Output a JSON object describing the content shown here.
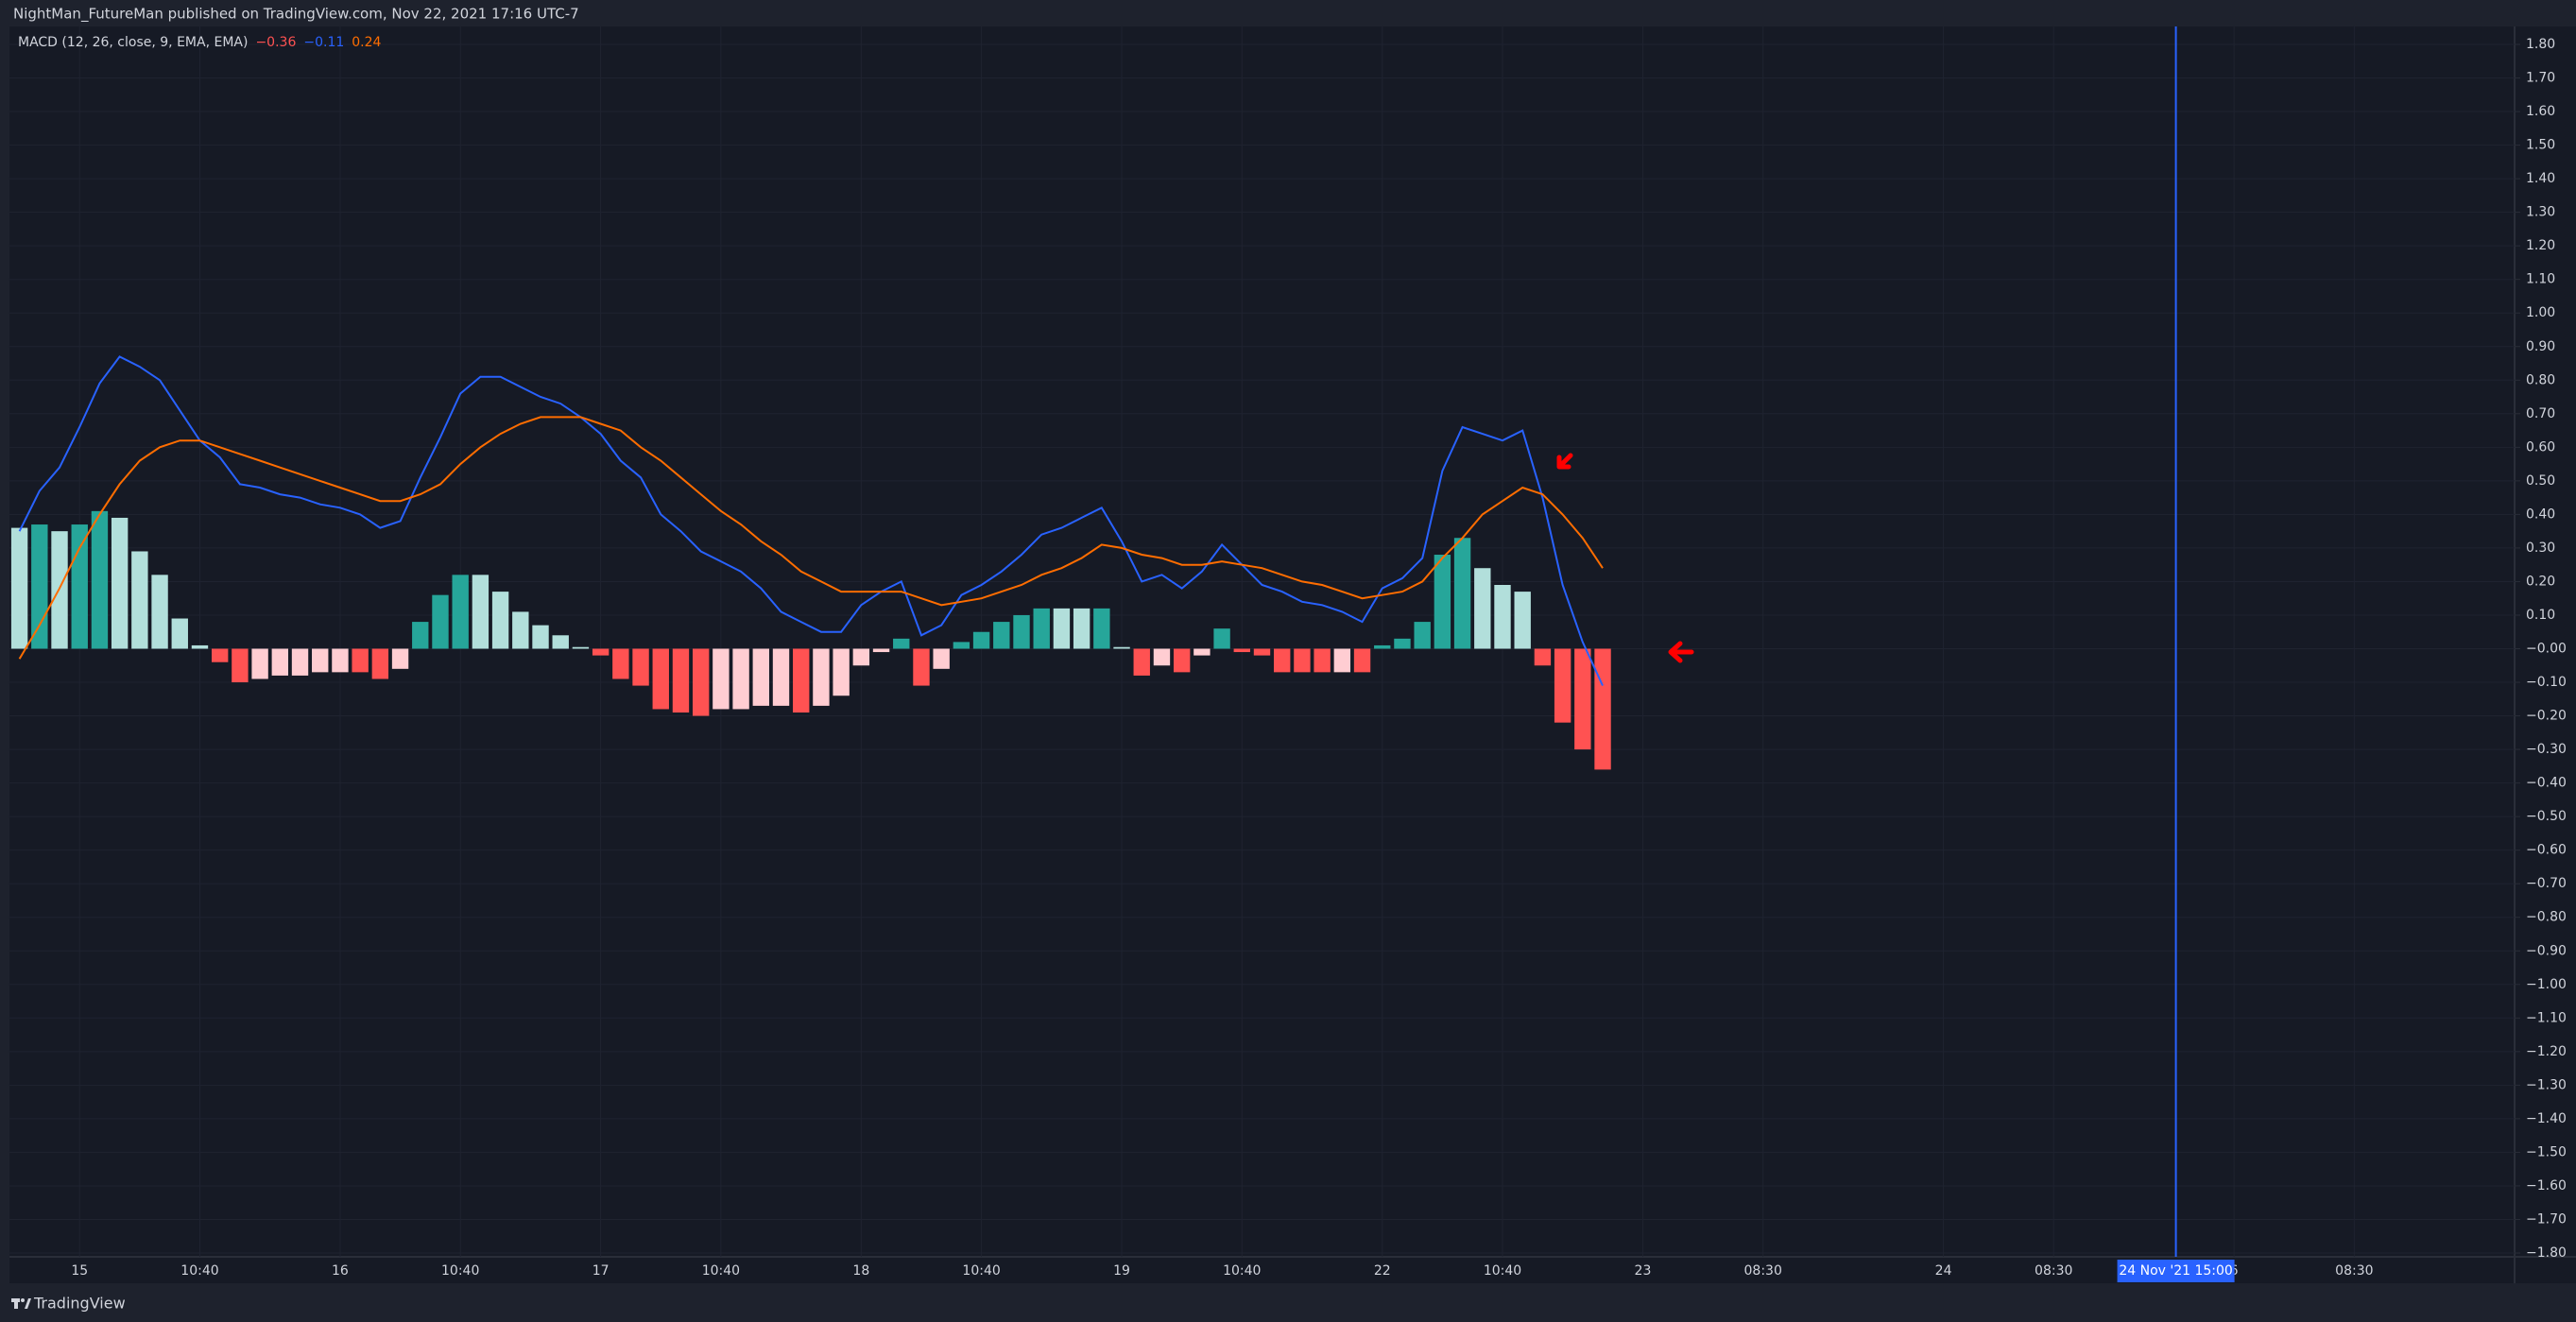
{
  "header": {
    "text": "NightMan_FutureMan published on TradingView.com, Nov 22, 2021 17:16 UTC-7"
  },
  "footer": {
    "brand": "TradingView"
  },
  "chart_data": {
    "type": "macd",
    "indicator": "MACD (12, 26, close, 9, EMA, EMA)",
    "readouts": [
      "−0.36",
      "−0.11",
      "0.24"
    ],
    "histogram": {
      "values": [
        0.36,
        0.37,
        0.35,
        0.37,
        0.41,
        0.39,
        0.29,
        0.22,
        0.09,
        0.01,
        -0.04,
        -0.1,
        -0.09,
        -0.08,
        -0.08,
        -0.07,
        -0.07,
        -0.07,
        -0.09,
        -0.06,
        0.08,
        0.16,
        0.22,
        0.22,
        0.17,
        0.11,
        0.07,
        0.04,
        0.005,
        -0.02,
        -0.09,
        -0.11,
        -0.18,
        -0.19,
        -0.2,
        -0.18,
        -0.18,
        -0.17,
        -0.17,
        -0.19,
        -0.17,
        -0.14,
        -0.05,
        -0.01,
        0.03,
        -0.11,
        -0.06,
        0.02,
        0.05,
        0.08,
        0.1,
        0.12,
        0.12,
        0.12,
        0.12,
        0.005,
        -0.08,
        -0.05,
        -0.07,
        -0.02,
        0.06,
        -0.01,
        -0.02,
        -0.07,
        -0.07,
        -0.07,
        -0.07,
        -0.07,
        0.01,
        0.03,
        0.08,
        0.28,
        0.33,
        0.24,
        0.19,
        0.17,
        -0.05,
        -0.22,
        -0.3,
        -0.36
      ],
      "colors": [
        "#b2dfdb",
        "#26a69a",
        "#b2dfdb",
        "#26a69a",
        "#26a69a",
        "#b2dfdb",
        "#b2dfdb",
        "#b2dfdb",
        "#b2dfdb",
        "#b2dfdb",
        "#ff5252",
        "#ff5252",
        "#ffcdd2",
        "#ffcdd2",
        "#ffcdd2",
        "#ffcdd2",
        "#ffcdd2",
        "#ff5252",
        "#ff5252",
        "#ffcdd2",
        "#26a69a",
        "#26a69a",
        "#26a69a",
        "#b2dfdb",
        "#b2dfdb",
        "#b2dfdb",
        "#b2dfdb",
        "#b2dfdb",
        "#b2dfdb",
        "#ff5252",
        "#ff5252",
        "#ff5252",
        "#ff5252",
        "#ff5252",
        "#ff5252",
        "#ffcdd2",
        "#ffcdd2",
        "#ffcdd2",
        "#ffcdd2",
        "#ff5252",
        "#ffcdd2",
        "#ffcdd2",
        "#ffcdd2",
        "#ffcdd2",
        "#26a69a",
        "#ff5252",
        "#ffcdd2",
        "#26a69a",
        "#26a69a",
        "#26a69a",
        "#26a69a",
        "#26a69a",
        "#b2dfdb",
        "#b2dfdb",
        "#26a69a",
        "#b2dfdb",
        "#ff5252",
        "#ffcdd2",
        "#ff5252",
        "#ffcdd2",
        "#26a69a",
        "#ff5252",
        "#ff5252",
        "#ff5252",
        "#ff5252",
        "#ff5252",
        "#ffcdd2",
        "#ff5252",
        "#26a69a",
        "#26a69a",
        "#26a69a",
        "#26a69a",
        "#26a69a",
        "#b2dfdb",
        "#b2dfdb",
        "#b2dfdb",
        "#ff5252",
        "#ff5252",
        "#ff5252",
        "#ff5252"
      ]
    },
    "series": [
      {
        "color": "#2962ff",
        "values": [
          0.35,
          0.47,
          0.54,
          0.66,
          0.79,
          0.87,
          0.84,
          0.8,
          0.71,
          0.62,
          0.57,
          0.49,
          0.48,
          0.46,
          0.45,
          0.43,
          0.42,
          0.4,
          0.36,
          0.38,
          0.51,
          0.63,
          0.76,
          0.81,
          0.81,
          0.78,
          0.75,
          0.73,
          0.69,
          0.64,
          0.56,
          0.51,
          0.4,
          0.35,
          0.29,
          0.26,
          0.23,
          0.18,
          0.11,
          0.08,
          0.05,
          0.05,
          0.13,
          0.17,
          0.2,
          0.04,
          0.07,
          0.16,
          0.19,
          0.23,
          0.28,
          0.34,
          0.36,
          0.39,
          0.42,
          0.32,
          0.2,
          0.22,
          0.18,
          0.23,
          0.31,
          0.25,
          0.19,
          0.17,
          0.14,
          0.13,
          0.11,
          0.08,
          0.18,
          0.21,
          0.27,
          0.53,
          0.66,
          0.64,
          0.62,
          0.65,
          0.45,
          0.19,
          0.02,
          -0.11
        ]
      },
      {
        "color": "#ff6d00",
        "values": [
          -0.03,
          0.07,
          0.18,
          0.3,
          0.4,
          0.49,
          0.56,
          0.6,
          0.62,
          0.62,
          0.6,
          0.58,
          0.56,
          0.54,
          0.52,
          0.5,
          0.48,
          0.46,
          0.44,
          0.44,
          0.46,
          0.49,
          0.55,
          0.6,
          0.64,
          0.67,
          0.69,
          0.69,
          0.69,
          0.67,
          0.65,
          0.6,
          0.56,
          0.51,
          0.46,
          0.41,
          0.37,
          0.32,
          0.28,
          0.23,
          0.2,
          0.17,
          0.17,
          0.17,
          0.17,
          0.15,
          0.13,
          0.14,
          0.15,
          0.17,
          0.19,
          0.22,
          0.24,
          0.27,
          0.31,
          0.3,
          0.28,
          0.27,
          0.25,
          0.25,
          0.26,
          0.25,
          0.24,
          0.22,
          0.2,
          0.19,
          0.17,
          0.15,
          0.16,
          0.17,
          0.2,
          0.27,
          0.33,
          0.4,
          0.44,
          0.48,
          0.46,
          0.4,
          0.33,
          0.24
        ]
      }
    ],
    "xlim": [
      -0.5,
      124.5
    ],
    "xticks": [
      {
        "value": 3,
        "label": "15"
      },
      {
        "value": 9,
        "label": "10:40"
      },
      {
        "value": 16,
        "label": "16"
      },
      {
        "value": 22,
        "label": "10:40"
      },
      {
        "value": 29,
        "label": "17"
      },
      {
        "value": 35,
        "label": "10:40"
      },
      {
        "value": 42,
        "label": "18"
      },
      {
        "value": 48,
        "label": "10:40"
      },
      {
        "value": 55,
        "label": "19"
      },
      {
        "value": 61,
        "label": "10:40"
      },
      {
        "value": 68,
        "label": "22"
      },
      {
        "value": 74,
        "label": "10:40"
      },
      {
        "value": 81,
        "label": "23"
      },
      {
        "value": 87,
        "label": "08:30"
      },
      {
        "value": 96,
        "label": "24"
      },
      {
        "value": 101.5,
        "label": "08:30"
      },
      {
        "value": 110.5,
        "label": "6"
      },
      {
        "value": 116.5,
        "label": "08:30"
      }
    ],
    "crosshair": {
      "value": 107.6,
      "label": "24 Nov '21   15:00"
    },
    "ylim": [
      -1.8,
      1.8
    ],
    "yticks": [
      {
        "value": 1.8,
        "label": "1.80"
      },
      {
        "value": 1.7,
        "label": "1.70"
      },
      {
        "value": 1.6,
        "label": "1.60"
      },
      {
        "value": 1.5,
        "label": "1.50"
      },
      {
        "value": 1.4,
        "label": "1.40"
      },
      {
        "value": 1.3,
        "label": "1.30"
      },
      {
        "value": 1.2,
        "label": "1.20"
      },
      {
        "value": 1.1,
        "label": "1.10"
      },
      {
        "value": 1.0,
        "label": "1.00"
      },
      {
        "value": 0.9,
        "label": "0.90"
      },
      {
        "value": 0.8,
        "label": "0.80"
      },
      {
        "value": 0.7,
        "label": "0.70"
      },
      {
        "value": 0.6,
        "label": "0.60"
      },
      {
        "value": 0.5,
        "label": "0.50"
      },
      {
        "value": 0.4,
        "label": "0.40"
      },
      {
        "value": 0.3,
        "label": "0.30"
      },
      {
        "value": 0.2,
        "label": "0.20"
      },
      {
        "value": 0.1,
        "label": "0.10"
      },
      {
        "value": 0,
        "label": "−0.00"
      },
      {
        "value": -0.1,
        "label": "−0.10"
      },
      {
        "value": -0.2,
        "label": "−0.20"
      },
      {
        "value": -0.3,
        "label": "−0.30"
      },
      {
        "value": -0.4,
        "label": "−0.40"
      },
      {
        "value": -0.5,
        "label": "−0.50"
      },
      {
        "value": -0.6,
        "label": "−0.60"
      },
      {
        "value": -0.7,
        "label": "−0.70"
      },
      {
        "value": -0.8,
        "label": "−0.80"
      },
      {
        "value": -0.9,
        "label": "−0.90"
      },
      {
        "value": -1.0,
        "label": "−1.00"
      },
      {
        "value": -1.1,
        "label": "−1.10"
      },
      {
        "value": -1.2,
        "label": "−1.20"
      },
      {
        "value": -1.3,
        "label": "−1.30"
      },
      {
        "value": -1.4,
        "label": "−1.40"
      },
      {
        "value": -1.5,
        "label": "−1.50"
      },
      {
        "value": -1.6,
        "label": "−1.60"
      },
      {
        "value": -1.7,
        "label": "−1.70"
      },
      {
        "value": -1.8,
        "label": "−1.80"
      }
    ],
    "grid": true
  }
}
